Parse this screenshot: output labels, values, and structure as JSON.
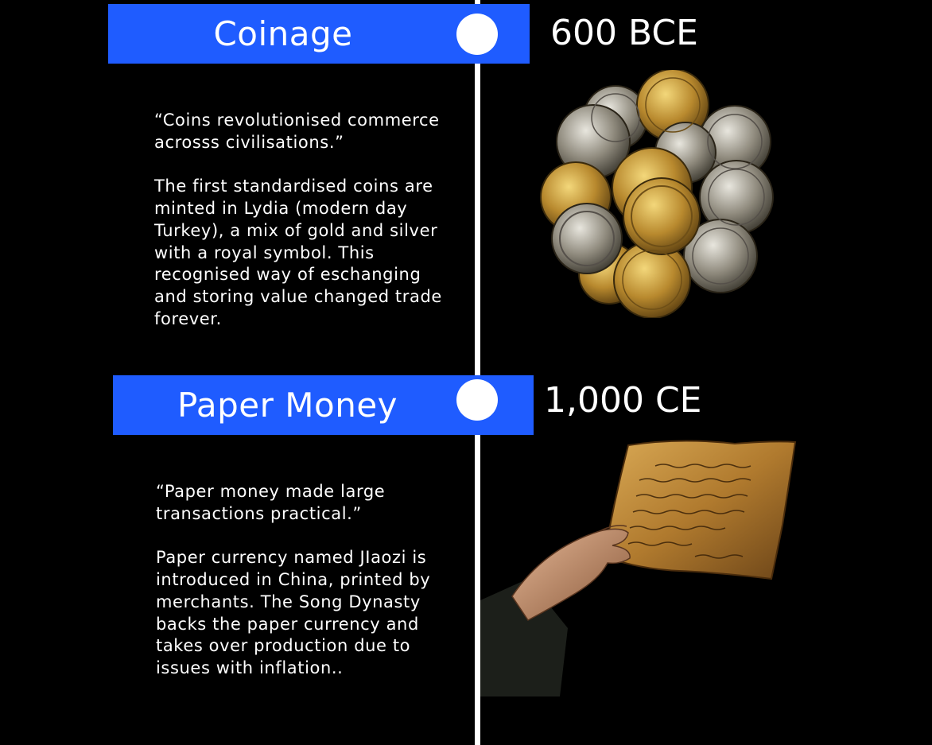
{
  "events": [
    {
      "title": "Coinage",
      "date": "600 BCE",
      "quote": "“Coins revolutionised commerce acrosss civilisations.”",
      "description": "The first standardised coins are minted in Lydia (modern day Turkey),  a mix of gold and silver with a royal symbol. This recognised way of eschanging and storing value changed trade forever.",
      "image": "pile-of-coins"
    },
    {
      "title": "Paper Money",
      "date": "1,000 CE",
      "quote": "“Paper money made large transactions practical.”",
      "description": "Paper currency named JIaozi is introduced in China, printed by merchants. The Song Dynasty backs the paper currency and takes over production due to issues with inflation..",
      "image": "hand-holding-paper-note"
    }
  ],
  "colors": {
    "background": "#000000",
    "banner": "#1f5cff",
    "timeline": "#ffffff"
  }
}
